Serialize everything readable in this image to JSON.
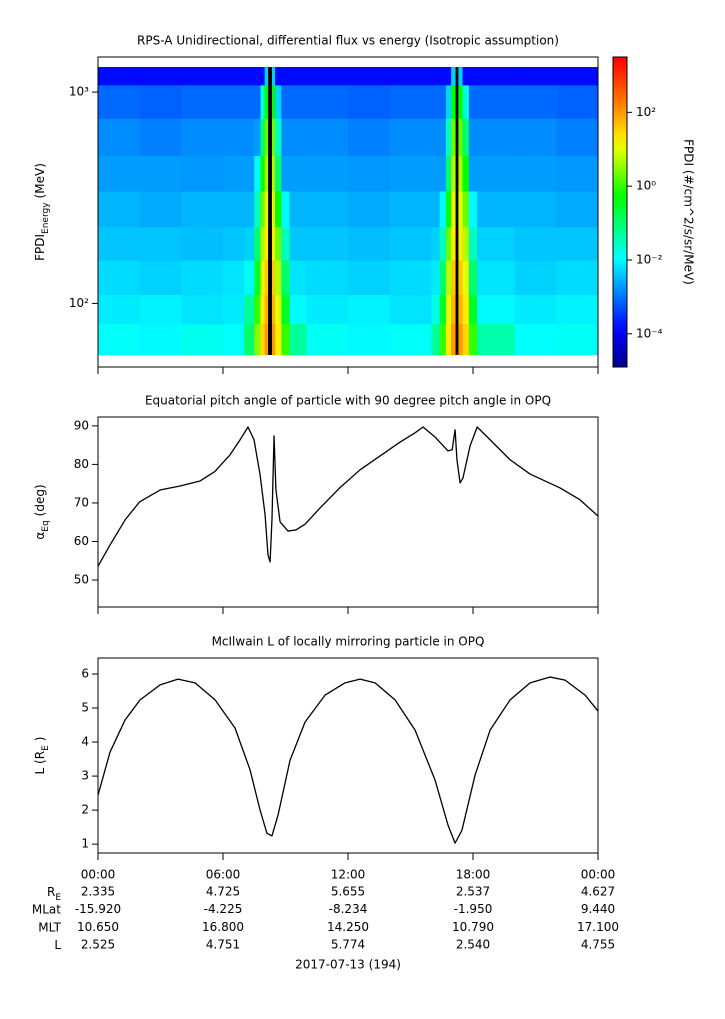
{
  "chart_data": [
    {
      "type": "heatmap",
      "title": "RPS-A Unidirectional, differential flux vs energy (Isotropic assumption)",
      "ylabel": "FPDI",
      "ylabel_sub": "Energy",
      "ylabel_suffix": "(MeV)",
      "colorbar_label": "FPDI (#/cm^2/s/sr/MeV)",
      "xlim": [
        0,
        24
      ],
      "xticks": [
        0,
        6,
        12,
        18,
        24
      ],
      "ylim": [
        50,
        1466
      ],
      "ylog": true,
      "yticks": [
        {
          "value": 100,
          "label": "10²"
        },
        {
          "value": 1000,
          "label": "10³"
        }
      ],
      "zlim": [
        1.26e-05,
        3160
      ],
      "zlog": true,
      "zticks": [
        {
          "value": 0.0001,
          "label": "10⁻⁴"
        },
        {
          "value": 0.01,
          "label": "10⁻²"
        },
        {
          "value": 1,
          "label": "10⁰"
        },
        {
          "value": 100,
          "label": "10²"
        }
      ],
      "x_bins": [
        0,
        2,
        4,
        6,
        7,
        7.5,
        7.8,
        8.0,
        8.15,
        8.35,
        8.5,
        8.8,
        9.2,
        10,
        12,
        14,
        16,
        16.4,
        16.7,
        16.95,
        17.15,
        17.3,
        17.5,
        17.8,
        18.2,
        20,
        22,
        24
      ],
      "y_bins": [
        57,
        80,
        110,
        160,
        230,
        340,
        500,
        750,
        1080,
        1313
      ],
      "z": [
        [
          0.012,
          0.01,
          0.014,
          0.011,
          0.1,
          3,
          30,
          100,
          null,
          100,
          20,
          1,
          0.05,
          0.013,
          0.01,
          0.012,
          0.05,
          1,
          20,
          100,
          null,
          100,
          30,
          1,
          0.04,
          0.011,
          0.013
        ],
        [
          0.008,
          0.009,
          0.007,
          0.008,
          0.05,
          1,
          20,
          60,
          null,
          60,
          10,
          0.3,
          0.01,
          0.008,
          0.009,
          0.007,
          0.015,
          0.3,
          10,
          60,
          null,
          60,
          20,
          0.3,
          0.01,
          0.008,
          0.009
        ],
        [
          0.006,
          0.005,
          0.006,
          0.007,
          0.01,
          0.3,
          10,
          40,
          null,
          40,
          5,
          0.1,
          0.007,
          0.006,
          0.005,
          0.006,
          0.008,
          0.1,
          5,
          40,
          null,
          40,
          10,
          0.1,
          0.007,
          0.005,
          0.006
        ],
        [
          0.004,
          0.004,
          0.0035,
          0.004,
          0.005,
          0.1,
          5,
          20,
          null,
          20,
          2,
          0.03,
          0.004,
          0.004,
          0.0035,
          0.004,
          0.005,
          0.03,
          2,
          20,
          null,
          20,
          5,
          0.03,
          0.005,
          0.004,
          0.004
        ],
        [
          0.003,
          0.0025,
          0.003,
          0.003,
          0.003,
          0.03,
          2,
          10,
          null,
          10,
          0.5,
          0.01,
          0.003,
          0.003,
          0.0025,
          0.003,
          0.003,
          0.01,
          0.5,
          10,
          null,
          10,
          2,
          0.01,
          0.003,
          0.003,
          0.0025
        ],
        [
          0.002,
          0.002,
          0.0018,
          0.002,
          0.002,
          0.01,
          0.5,
          5,
          null,
          5,
          0.1,
          0.002,
          0.002,
          0.002,
          0.0018,
          0.002,
          0.002,
          0.002,
          0.1,
          5,
          null,
          5,
          0.5,
          0.002,
          0.002,
          0.002,
          0.0018
        ],
        [
          0.0015,
          0.0012,
          0.0015,
          0.0015,
          0.0015,
          0.002,
          0.1,
          2,
          null,
          2,
          0.03,
          0.0015,
          0.0015,
          0.0015,
          0.0012,
          0.0015,
          0.0015,
          0.0015,
          0.03,
          2,
          null,
          2,
          0.1,
          0.0015,
          0.0015,
          0.0015,
          0.0012
        ],
        [
          0.0008,
          0.0007,
          0.0008,
          0.0008,
          0.0008,
          0.0008,
          0.02,
          0.5,
          null,
          0.5,
          0.005,
          0.0008,
          0.0008,
          0.0008,
          0.0007,
          0.0008,
          0.0008,
          0.0008,
          0.005,
          0.5,
          null,
          0.5,
          0.02,
          0.0008,
          0.0008,
          0.0008,
          0.0007
        ],
        [
          0.00015,
          0.00015,
          0.00015,
          0.00015,
          0.00015,
          0.00015,
          0.00015,
          0.005,
          null,
          0.005,
          0.00015,
          0.00015,
          0.00015,
          0.00015,
          0.00015,
          0.00015,
          0.00015,
          0.00015,
          0.00015,
          0.005,
          null,
          0.005,
          0.00015,
          0.00015,
          0.00015,
          0.00015,
          0.00015
        ]
      ]
    },
    {
      "type": "line",
      "title": "Equatorial pitch angle of particle with 90 degree pitch angle in OPQ",
      "ylabel": "α",
      "ylabel_sub": "Eq",
      "ylabel_suffix": "(deg)",
      "color": "#000000",
      "xlim": [
        0,
        24
      ],
      "xticks": [
        0,
        6,
        12,
        18,
        24
      ],
      "ylim": [
        43,
        92.3
      ],
      "yticks": [
        50,
        60,
        70,
        80,
        90
      ],
      "x": [
        0,
        0.58,
        1.3,
        2,
        3,
        3.94,
        4.9,
        5.6,
        6.34,
        6.82,
        7.2,
        7.49,
        7.78,
        8.02,
        8.16,
        8.26,
        8.35,
        8.45,
        8.54,
        8.74,
        9.12,
        9.5,
        9.94,
        10.66,
        11.6,
        12.58,
        13.54,
        14.5,
        15.22,
        15.6,
        16.18,
        16.8,
        17,
        17.14,
        17.23,
        17.38,
        17.52,
        17.86,
        18.2,
        18.82,
        19.78,
        20.74,
        22.18,
        23.14,
        24
      ],
      "values": [
        53.6,
        59.1,
        65.6,
        70.3,
        73.4,
        74.4,
        75.7,
        78.1,
        82.5,
        86.4,
        89.7,
        86.4,
        77.3,
        66.9,
        56.5,
        54.7,
        65.6,
        87.4,
        73.4,
        65.1,
        62.7,
        63,
        64.5,
        68.7,
        73.9,
        78.6,
        82.2,
        85.8,
        88.2,
        89.7,
        87.1,
        83.5,
        83.8,
        89,
        81.2,
        75.2,
        76.5,
        84.8,
        89.7,
        86.4,
        81.2,
        77.5,
        73.9,
        70.8,
        66.6
      ]
    },
    {
      "type": "line",
      "title": "McIlwain L of locally mirroring particle in OPQ",
      "ylabel": "L (R",
      "ylabel_sub": "E",
      "ylabel_suffix": ")",
      "color": "#000000",
      "xlim": [
        0,
        24
      ],
      "xticks": [
        {
          "value": 0,
          "label": "00:00"
        },
        {
          "value": 6,
          "label": "06:00"
        },
        {
          "value": 12,
          "label": "12:00"
        },
        {
          "value": 18,
          "label": "18:00"
        },
        {
          "value": 24,
          "label": "00:00"
        }
      ],
      "ylim": [
        0.74,
        6.47
      ],
      "yticks": [
        1,
        2,
        3,
        4,
        5,
        6
      ],
      "x": [
        0,
        0.58,
        1.3,
        2.02,
        2.98,
        3.84,
        4.66,
        5.62,
        6.58,
        7.3,
        7.78,
        8.11,
        8.35,
        8.64,
        9.22,
        9.94,
        10.9,
        11.86,
        12.58,
        13.3,
        14.26,
        15.22,
        16.18,
        16.8,
        17.14,
        17.47,
        18.1,
        18.82,
        19.78,
        20.74,
        21.7,
        22.42,
        23.38,
        24
      ],
      "values": [
        2.44,
        3.71,
        4.65,
        5.24,
        5.68,
        5.85,
        5.74,
        5.24,
        4.41,
        3.18,
        2,
        1.32,
        1.24,
        1.85,
        3.47,
        4.59,
        5.38,
        5.74,
        5.85,
        5.74,
        5.24,
        4.35,
        2.88,
        1.56,
        1.03,
        1.41,
        3.03,
        4.35,
        5.24,
        5.74,
        5.91,
        5.82,
        5.38,
        4.91
      ]
    }
  ],
  "ephemeris": {
    "rows": [
      {
        "label": "R",
        "label_sub": "E",
        "values": [
          "2.335",
          "4.725",
          "5.655",
          "2.537",
          "4.627"
        ]
      },
      {
        "label": "MLat",
        "values": [
          "-15.920",
          "-4.225",
          "-8.234",
          "-1.950",
          "9.440"
        ]
      },
      {
        "label": "MLT",
        "values": [
          "10.650",
          "16.800",
          "14.250",
          "10.790",
          "17.100"
        ]
      },
      {
        "label": "L",
        "values": [
          "2.525",
          "4.751",
          "5.774",
          "2.540",
          "4.755"
        ]
      }
    ],
    "date": "2017-07-13 (194)"
  }
}
